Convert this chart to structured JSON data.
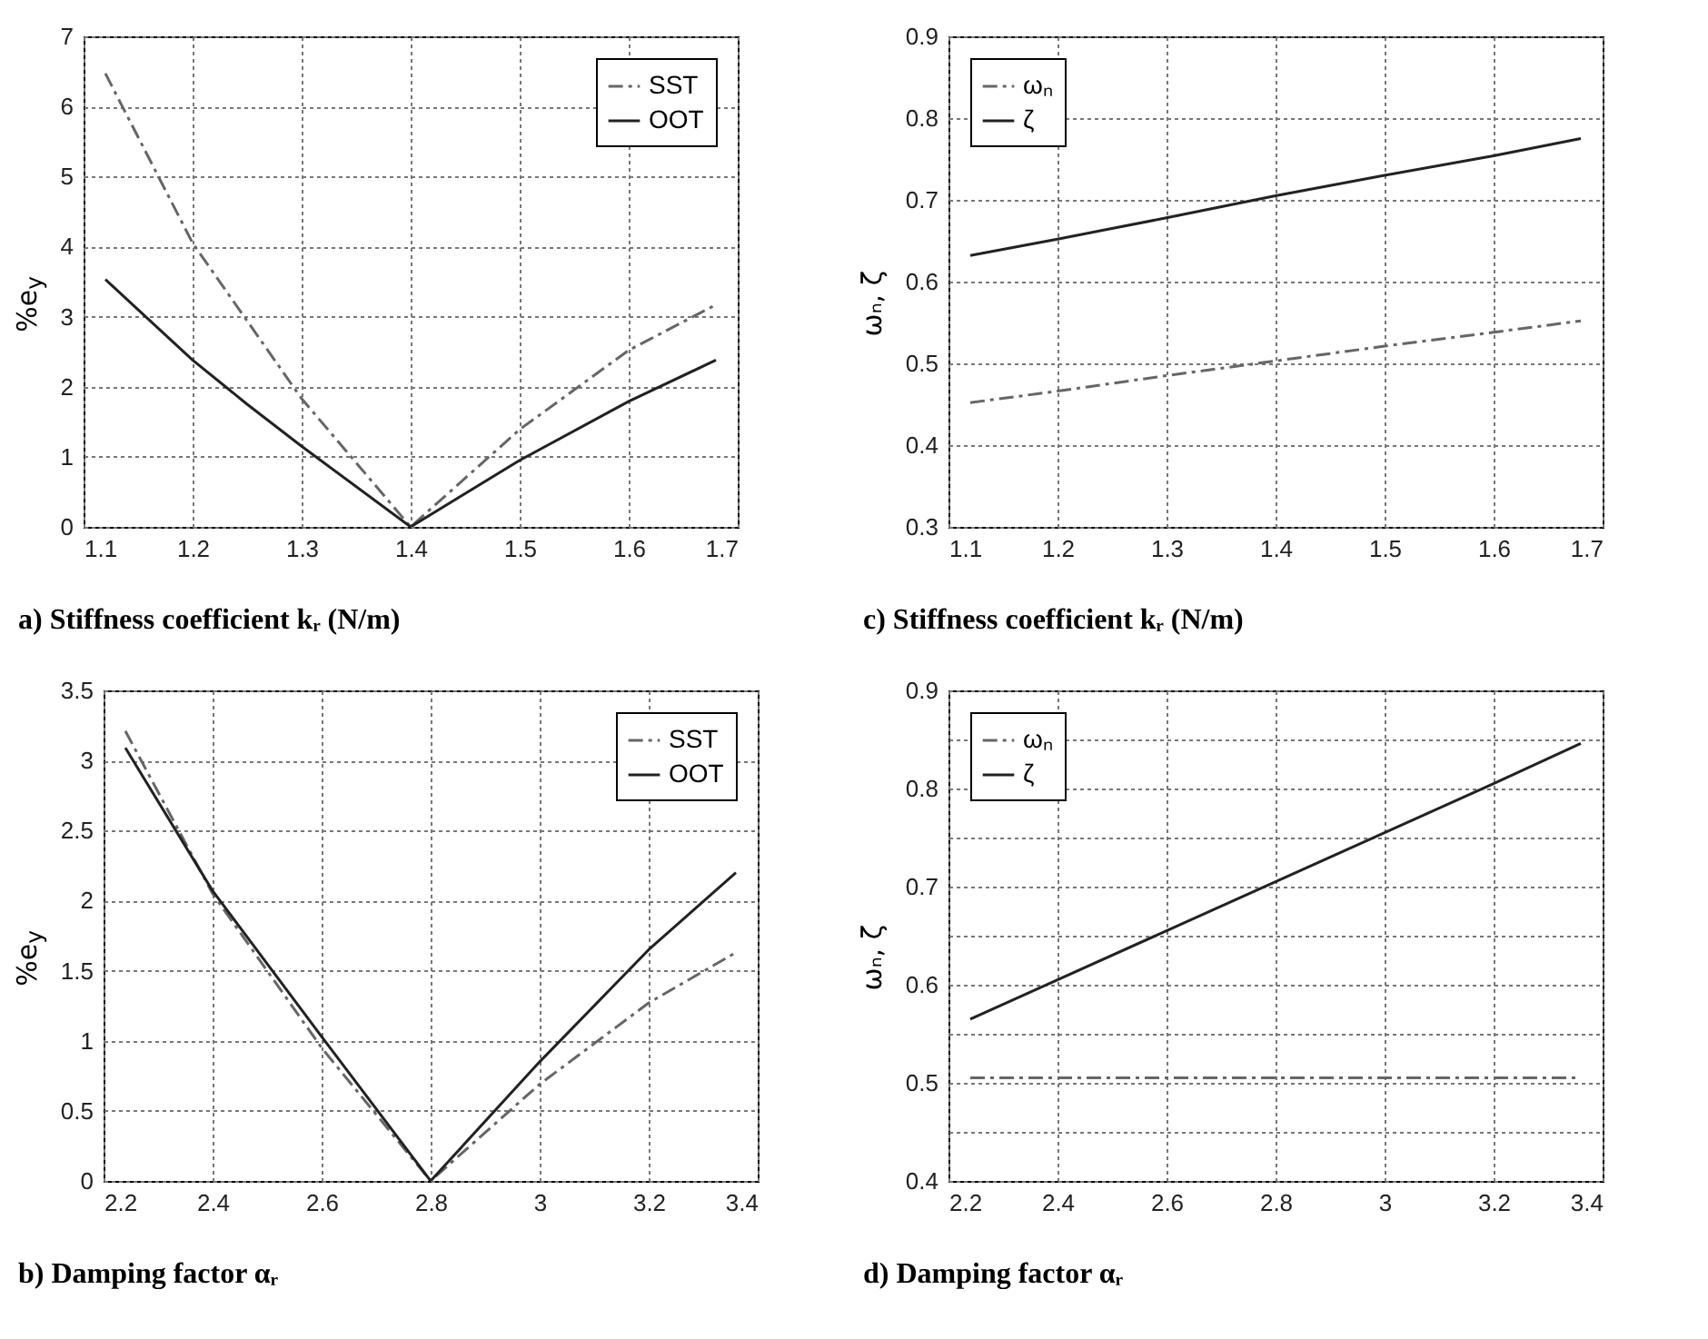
{
  "chart_data": [
    {
      "type": "line",
      "xlabel": "a) Stiffness coefficient kᵣ (N/m)",
      "ylabel": "%e$_{y}$",
      "x": [
        1.12,
        1.2,
        1.25,
        1.3,
        1.4,
        1.5,
        1.6,
        1.68
      ],
      "xlim": [
        1.1,
        1.7
      ],
      "xticks": [
        1.1,
        1.2,
        1.3,
        1.4,
        1.5,
        1.6,
        1.7
      ],
      "ylim": [
        0,
        7
      ],
      "yticks": [
        0,
        1,
        2,
        3,
        4,
        5,
        6,
        7
      ],
      "grid": true,
      "legend": "top right",
      "series": [
        {
          "name": "SST",
          "color": "#666666",
          "line_style": "dashed",
          "values": [
            6.47,
            4.05,
            2.94,
            1.83,
            0,
            1.39,
            2.52,
            3.17
          ]
        },
        {
          "name": "OOT",
          "color": "#222222",
          "line_style": "solid",
          "values": [
            3.53,
            2.38,
            1.75,
            1.15,
            0,
            0.95,
            1.79,
            2.38
          ]
        }
      ]
    },
    {
      "type": "line",
      "xlabel": "c) Stiffness coefficient kᵣ (N/m)",
      "ylabel": "ωₙ, ζ",
      "x": [
        1.12,
        1.2,
        1.3,
        1.4,
        1.5,
        1.6,
        1.68
      ],
      "xlim": [
        1.1,
        1.7
      ],
      "xticks": [
        1.1,
        1.2,
        1.3,
        1.4,
        1.5,
        1.6,
        1.7
      ],
      "ylim": [
        0.3,
        0.9
      ],
      "yticks": [
        0.3,
        0.4,
        0.5,
        0.6,
        0.7,
        0.8,
        0.9
      ],
      "grid": true,
      "legend": "top left",
      "series": [
        {
          "name": "ωₙ",
          "color": "#666666",
          "line_style": "dashed",
          "values": [
            0.452,
            0.466,
            0.485,
            0.503,
            0.521,
            0.538,
            0.552
          ]
        },
        {
          "name": "ζ",
          "color": "#222222",
          "line_style": "solid",
          "values": [
            0.632,
            0.652,
            0.678,
            0.705,
            0.73,
            0.754,
            0.775
          ]
        }
      ]
    },
    {
      "type": "line",
      "xlabel": "b) Damping factor αᵣ",
      "ylabel": "%e$_{y}$",
      "x": [
        2.24,
        2.4,
        2.6,
        2.8,
        3.0,
        3.2,
        3.36
      ],
      "xlim": [
        2.2,
        3.4
      ],
      "xticks": [
        2.2,
        2.4,
        2.6,
        2.8,
        3,
        3.2,
        3.4
      ],
      "ylim": [
        0,
        3.5
      ],
      "yticks": [
        0,
        0.5,
        1,
        1.5,
        2,
        2.5,
        3,
        3.5
      ],
      "grid": true,
      "legend": "top right",
      "series": [
        {
          "name": "SST",
          "color": "#666666",
          "line_style": "dashed",
          "values": [
            3.21,
            2.05,
            0.95,
            0,
            0.69,
            1.27,
            1.63
          ]
        },
        {
          "name": "OOT",
          "color": "#222222",
          "line_style": "solid",
          "values": [
            3.09,
            2.07,
            1.03,
            0,
            0.85,
            1.65,
            2.2
          ]
        }
      ]
    },
    {
      "type": "line",
      "xlabel": "d) Damping factor αᵣ",
      "ylabel": "ωₙ, ζ",
      "x": [
        2.24,
        2.4,
        2.6,
        2.8,
        3.0,
        3.2,
        3.36
      ],
      "xlim": [
        2.2,
        3.4
      ],
      "xticks": [
        2.2,
        2.4,
        2.6,
        2.8,
        3,
        3.2,
        3.4
      ],
      "ylim": [
        0.4,
        0.9
      ],
      "yticks": [
        0.4,
        {
          "value": 0.45,
          "label": null
        },
        0.5,
        {
          "value": 0.55,
          "label": null
        },
        0.6,
        {
          "value": 0.65,
          "label": null
        },
        0.7,
        {
          "value": 0.75,
          "label": null
        },
        0.8,
        {
          "value": 0.85,
          "label": null
        },
        0.9
      ],
      "grid": true,
      "legend": "top left",
      "series": [
        {
          "name": "ωₙ",
          "color": "#666666",
          "line_style": "dashed",
          "values": [
            0.505,
            0.505,
            0.505,
            0.505,
            0.505,
            0.505,
            0.505
          ]
        },
        {
          "name": "ζ",
          "color": "#222222",
          "line_style": "solid",
          "values": [
            0.565,
            0.605,
            0.655,
            0.705,
            0.755,
            0.805,
            0.846
          ]
        }
      ]
    }
  ]
}
